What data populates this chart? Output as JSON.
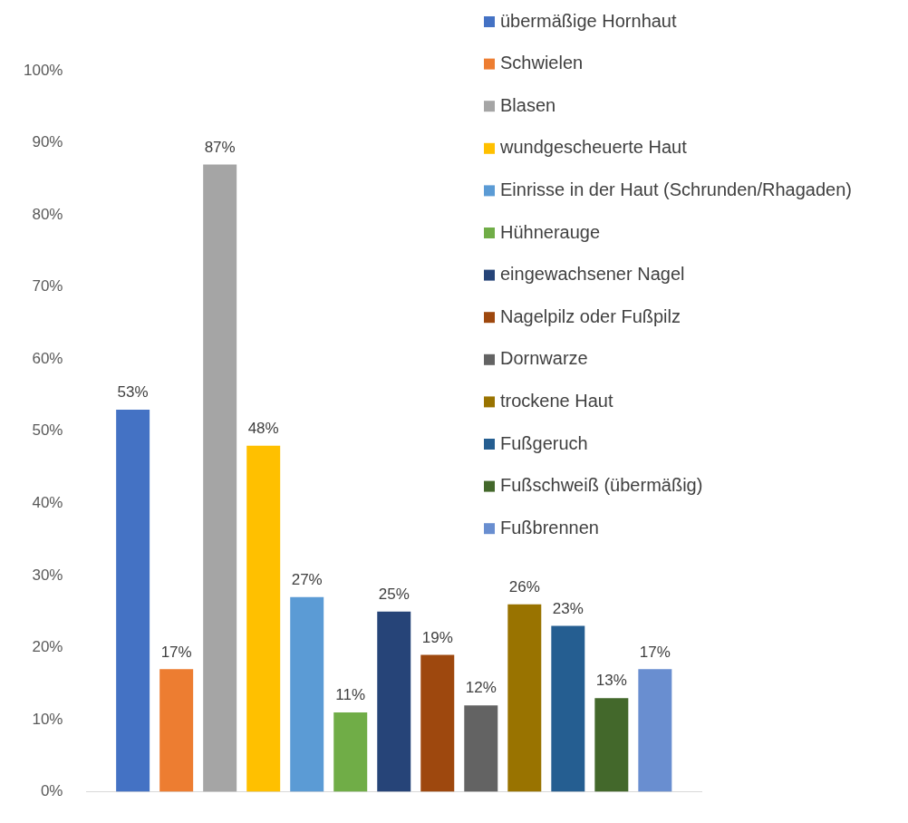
{
  "chart_data": {
    "type": "bar",
    "categories": [
      null
    ],
    "ylim": [
      0,
      100
    ],
    "yticks": [
      {
        "value": 0,
        "label": "0%"
      },
      {
        "value": 10,
        "label": "10%"
      },
      {
        "value": 20,
        "label": "20%"
      },
      {
        "value": 30,
        "label": "30%"
      },
      {
        "value": 40,
        "label": "40%"
      },
      {
        "value": 50,
        "label": "50%"
      },
      {
        "value": 60,
        "label": "60%"
      },
      {
        "value": 70,
        "label": "70%"
      },
      {
        "value": 80,
        "label": "80%"
      },
      {
        "value": 90,
        "label": "90%"
      },
      {
        "value": 100,
        "label": "100%"
      }
    ],
    "grid": false,
    "legend": "top right",
    "series": [
      {
        "name": "übermäßige Hornhaut",
        "color": "#4472c4",
        "values": [
          53
        ],
        "value_labels": [
          "53%"
        ]
      },
      {
        "name": "Schwielen",
        "color": "#ed7d31",
        "values": [
          17
        ],
        "value_labels": [
          "17%"
        ]
      },
      {
        "name": "Blasen",
        "color": "#a5a5a5",
        "values": [
          87
        ],
        "value_labels": [
          "87%"
        ]
      },
      {
        "name": "wundgescheuerte Haut",
        "color": "#ffc000",
        "values": [
          48
        ],
        "value_labels": [
          "48%"
        ]
      },
      {
        "name": "Einrisse in der Haut (Schrunden/Rhagaden)",
        "color": "#5b9bd5",
        "values": [
          27
        ],
        "value_labels": [
          "27%"
        ]
      },
      {
        "name": "Hühnerauge",
        "color": "#70ad47",
        "values": [
          11
        ],
        "value_labels": [
          "11%"
        ]
      },
      {
        "name": "eingewachsener Nagel",
        "color": "#264478",
        "values": [
          25
        ],
        "value_labels": [
          "25%"
        ]
      },
      {
        "name": "Nagelpilz oder Fußpilz",
        "color": "#9e480e",
        "values": [
          19
        ],
        "value_labels": [
          "19%"
        ]
      },
      {
        "name": "Dornwarze",
        "color": "#636363",
        "values": [
          12
        ],
        "value_labels": [
          "12%"
        ]
      },
      {
        "name": "trockene Haut",
        "color": "#997300",
        "values": [
          26
        ],
        "value_labels": [
          "26%"
        ]
      },
      {
        "name": "Fußgeruch",
        "color": "#255e91",
        "values": [
          23
        ],
        "value_labels": [
          "23%"
        ]
      },
      {
        "name": "Fußschweiß (übermäßig)",
        "color": "#43682b",
        "values": [
          13
        ],
        "value_labels": [
          "13%"
        ]
      },
      {
        "name": "Fußbrennen",
        "color": "#698ed0",
        "values": [
          17
        ],
        "value_labels": [
          "17%"
        ]
      }
    ]
  }
}
